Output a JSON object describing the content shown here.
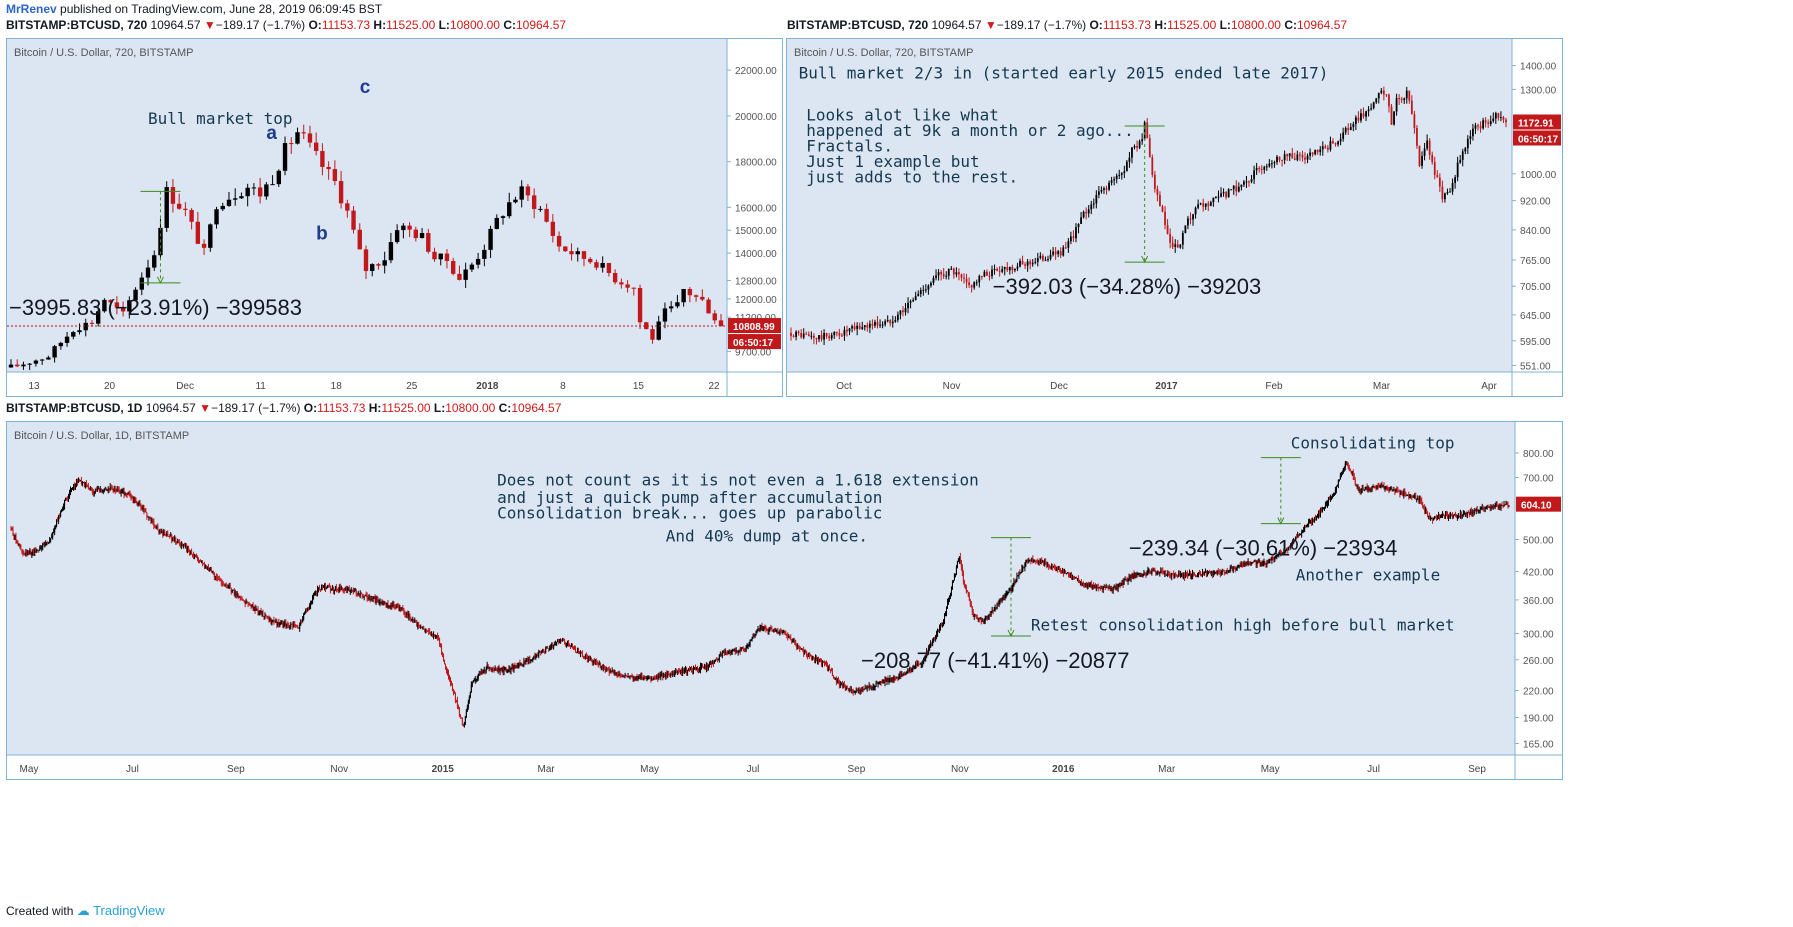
{
  "publish": {
    "author": "MrRenev",
    "text": "published on TradingView.com, June 28, 2019 06:09:45 BST"
  },
  "footer": {
    "created": "Created with",
    "brand": "TradingView"
  },
  "symbol_line": {
    "symbol": "BITSTAMP:BTCUSD,",
    "price": "10964.57",
    "change": "−189.17 (−1.7%)",
    "o_label": "O:",
    "o": "11153.73",
    "h_label": "H:",
    "h": "11525.00",
    "l_label": "L:",
    "l": "10800.00",
    "c_label": "C:",
    "c": "10964.57"
  },
  "colors": {
    "bg": "#dce6f2",
    "bull": "#000000",
    "bear": "#c0181b",
    "measure": "#3d8b1d",
    "tag": "#c0181b",
    "note": "#153850",
    "letters": "#1e3c8c"
  },
  "chart_data": [
    {
      "type": "candlestick",
      "interval": "720",
      "title": "Bitcoin / U.S. Dollar, 720, BITSTAMP",
      "yticks": [
        "22000.00",
        "20000.00",
        "18000.00",
        "16000.00",
        "15000.00",
        "14000.00",
        "12800.00",
        "12000.00",
        "11200.00",
        "9700.00"
      ],
      "xticks": [
        "13",
        "20",
        "Dec",
        "11",
        "18",
        "25",
        "2018",
        "8",
        "15",
        "22"
      ],
      "last_price": "10808.99",
      "countdown": "06:50:17",
      "path": [
        [
          0,
          9000
        ],
        [
          6,
          9500
        ],
        [
          10,
          10700
        ],
        [
          13,
          11000
        ],
        [
          15,
          12000
        ],
        [
          18,
          11300
        ],
        [
          20,
          12500
        ],
        [
          23,
          14000
        ],
        [
          25,
          16700
        ],
        [
          28,
          15800
        ],
        [
          31,
          14000
        ],
        [
          33,
          16200
        ],
        [
          38,
          16900
        ],
        [
          40,
          16600
        ],
        [
          42,
          17300
        ],
        [
          44,
          18500
        ],
        [
          46,
          19300
        ],
        [
          47,
          19000
        ],
        [
          50,
          17800
        ],
        [
          52,
          17100
        ],
        [
          54,
          15800
        ],
        [
          56,
          14000
        ],
        [
          57,
          13300
        ],
        [
          60,
          13800
        ],
        [
          62,
          15200
        ],
        [
          64,
          15000
        ],
        [
          66,
          14700
        ],
        [
          68,
          13800
        ],
        [
          70,
          13700
        ],
        [
          72,
          12900
        ],
        [
          74,
          13500
        ],
        [
          76,
          14300
        ],
        [
          78,
          15400
        ],
        [
          80,
          16200
        ],
        [
          82,
          16700
        ],
        [
          85,
          15900
        ],
        [
          88,
          14300
        ],
        [
          91,
          13900
        ],
        [
          94,
          13600
        ],
        [
          97,
          12900
        ],
        [
          100,
          12500
        ],
        [
          101,
          11000
        ],
        [
          103,
          10300
        ],
        [
          105,
          11400
        ],
        [
          107,
          11700
        ],
        [
          108,
          12400
        ],
        [
          111,
          11900
        ],
        [
          114,
          10808.99
        ]
      ],
      "annotations": [
        {
          "kind": "text",
          "text": "Bull market top",
          "x": 22,
          "y": 19650
        },
        {
          "kind": "letter",
          "text": "a",
          "x": 41,
          "y": 19000
        },
        {
          "kind": "letter",
          "text": "b",
          "x": 49,
          "y": 14600
        },
        {
          "kind": "letter",
          "text": "c",
          "x": 56,
          "y": 21000
        },
        {
          "kind": "measure",
          "text": "−3995.83 (−23.91%) −399583",
          "x": 24,
          "y1": 16700,
          "y2": 12700
        }
      ]
    },
    {
      "type": "candlestick",
      "interval": "720",
      "title": "Bitcoin / U.S. Dollar, 720, BITSTAMP",
      "yticks": [
        "1400.00",
        "1300.00",
        "1172.91",
        "1000.00",
        "920.00",
        "840.00",
        "765.00",
        "705.00",
        "645.00",
        "595.00",
        "551.00"
      ],
      "xticks": [
        "Oct",
        "Nov",
        "Dec",
        "2017",
        "Feb",
        "Mar",
        "Apr"
      ],
      "last_price": "1172.91",
      "countdown": "06:50:17",
      "path": [
        [
          0,
          610
        ],
        [
          10,
          600
        ],
        [
          20,
          610
        ],
        [
          30,
          625
        ],
        [
          38,
          630
        ],
        [
          45,
          660
        ],
        [
          52,
          700
        ],
        [
          58,
          730
        ],
        [
          63,
          740
        ],
        [
          70,
          705
        ],
        [
          76,
          730
        ],
        [
          82,
          745
        ],
        [
          88,
          750
        ],
        [
          94,
          760
        ],
        [
          100,
          772
        ],
        [
          108,
          790
        ],
        [
          115,
          880
        ],
        [
          122,
          950
        ],
        [
          130,
          1000
        ],
        [
          134,
          1075
        ],
        [
          138,
          1120
        ],
        [
          139,
          1160
        ],
        [
          141,
          1050
        ],
        [
          143,
          950
        ],
        [
          146,
          880
        ],
        [
          149,
          800
        ],
        [
          152,
          790
        ],
        [
          156,
          860
        ],
        [
          160,
          900
        ],
        [
          164,
          910
        ],
        [
          170,
          935
        ],
        [
          178,
          970
        ],
        [
          186,
          1030
        ],
        [
          194,
          1060
        ],
        [
          202,
          1050
        ],
        [
          210,
          1080
        ],
        [
          216,
          1120
        ],
        [
          222,
          1180
        ],
        [
          228,
          1230
        ],
        [
          232,
          1290
        ],
        [
          234,
          1270
        ],
        [
          236,
          1170
        ],
        [
          238,
          1260
        ],
        [
          242,
          1280
        ],
        [
          245,
          1160
        ],
        [
          247,
          1030
        ],
        [
          250,
          1110
        ],
        [
          253,
          1000
        ],
        [
          256,
          930
        ],
        [
          259,
          950
        ],
        [
          263,
          1050
        ],
        [
          268,
          1150
        ],
        [
          273,
          1175
        ],
        [
          278,
          1205
        ],
        [
          281,
          1172.91
        ]
      ],
      "annotations": [
        {
          "kind": "text",
          "text": "Bull market 2/3 in (started early 2015 ended late 2017)",
          "x": 3,
          "y": 1345
        },
        {
          "kind": "text",
          "text": "Looks alot like what",
          "x": 6,
          "y": 1180
        },
        {
          "kind": "text",
          "text": "happened at 9k a month or 2 ago...",
          "x": 6,
          "y": 1125
        },
        {
          "kind": "text",
          "text": "Fractals.",
          "x": 6,
          "y": 1072
        },
        {
          "kind": "text",
          "text": "Just 1 example but",
          "x": 6,
          "y": 1022
        },
        {
          "kind": "text",
          "text": "just adds to the rest.",
          "x": 6,
          "y": 974
        },
        {
          "kind": "measure",
          "text": "−392.03 (−34.28%) −39203",
          "x": 139,
          "y1": 1160,
          "y2": 760
        }
      ]
    },
    {
      "type": "candlestick",
      "interval": "1D",
      "title": "Bitcoin / U.S. Dollar, 1D, BITSTAMP",
      "yticks": [
        "800.00",
        "700.00",
        "604.10",
        "500.00",
        "420.00",
        "360.00",
        "300.00",
        "260.00",
        "220.00",
        "190.00",
        "165.00"
      ],
      "xticks": [
        "May",
        "Jul",
        "Sep",
        "Nov",
        "2015",
        "Mar",
        "May",
        "Jul",
        "Sep",
        "Nov",
        "2016",
        "Mar",
        "May",
        "Jul",
        "Sep"
      ],
      "last_price": "604.10",
      "countdown": "",
      "path": [
        [
          0,
          530
        ],
        [
          12,
          460
        ],
        [
          25,
          470
        ],
        [
          40,
          500
        ],
        [
          55,
          620
        ],
        [
          68,
          690
        ],
        [
          82,
          650
        ],
        [
          100,
          660
        ],
        [
          118,
          640
        ],
        [
          130,
          600
        ],
        [
          150,
          520
        ],
        [
          165,
          500
        ],
        [
          180,
          470
        ],
        [
          210,
          400
        ],
        [
          240,
          350
        ],
        [
          262,
          320
        ],
        [
          290,
          310
        ],
        [
          310,
          385
        ],
        [
          340,
          380
        ],
        [
          368,
          360
        ],
        [
          395,
          340
        ],
        [
          412,
          310
        ],
        [
          430,
          295
        ],
        [
          440,
          240
        ],
        [
          456,
          180
        ],
        [
          465,
          230
        ],
        [
          480,
          250
        ],
        [
          500,
          245
        ],
        [
          520,
          258
        ],
        [
          540,
          275
        ],
        [
          555,
          290
        ],
        [
          568,
          275
        ],
        [
          590,
          255
        ],
        [
          610,
          240
        ],
        [
          640,
          235
        ],
        [
          670,
          242
        ],
        [
          700,
          250
        ],
        [
          720,
          270
        ],
        [
          740,
          275
        ],
        [
          755,
          310
        ],
        [
          780,
          300
        ],
        [
          800,
          270
        ],
        [
          820,
          255
        ],
        [
          833,
          230
        ],
        [
          848,
          218
        ],
        [
          870,
          226
        ],
        [
          900,
          240
        ],
        [
          920,
          260
        ],
        [
          940,
          320
        ],
        [
          950,
          400
        ],
        [
          956,
          460
        ],
        [
          960,
          400
        ],
        [
          970,
          330
        ],
        [
          980,
          320
        ],
        [
          990,
          340
        ],
        [
          1010,
          390
        ],
        [
          1025,
          450
        ],
        [
          1040,
          440
        ],
        [
          1060,
          420
        ],
        [
          1085,
          390
        ],
        [
          1110,
          380
        ],
        [
          1130,
          410
        ],
        [
          1150,
          420
        ],
        [
          1180,
          410
        ],
        [
          1200,
          415
        ],
        [
          1225,
          420
        ],
        [
          1245,
          440
        ],
        [
          1265,
          440
        ],
        [
          1285,
          470
        ],
        [
          1300,
          520
        ],
        [
          1320,
          580
        ],
        [
          1335,
          650
        ],
        [
          1345,
          760
        ],
        [
          1352,
          720
        ],
        [
          1358,
          650
        ],
        [
          1380,
          670
        ],
        [
          1405,
          640
        ],
        [
          1420,
          620
        ],
        [
          1430,
          555
        ],
        [
          1440,
          570
        ],
        [
          1460,
          570
        ],
        [
          1480,
          590
        ],
        [
          1500,
          600
        ],
        [
          1510,
          604.1
        ]
      ],
      "annotations": [
        {
          "kind": "text",
          "text": "Consolidating top",
          "x": 1290,
          "y": 820
        },
        {
          "kind": "text",
          "text": "Does not count as it is not even a 1.618 extension",
          "x": 490,
          "y": 670
        },
        {
          "kind": "text",
          "text": "and just a quick pump after accumulation",
          "x": 490,
          "y": 610
        },
        {
          "kind": "text",
          "text": "Consolidation break... goes up parabolic",
          "x": 490,
          "y": 560
        },
        {
          "kind": "text",
          "text": "And 40% dump at once.",
          "x": 660,
          "y": 495
        },
        {
          "kind": "text",
          "text": "Another example",
          "x": 1295,
          "y": 400
        },
        {
          "kind": "text",
          "text": "Retest consolidation high before bull market",
          "x": 1028,
          "y": 305
        },
        {
          "kind": "measure",
          "text": "−239.34 (−30.61%) −23934",
          "x": 1280,
          "y1": 780,
          "y2": 545
        },
        {
          "kind": "measure",
          "text": "−208.77 (−41.41%) −20877",
          "x": 1008,
          "y1": 505,
          "y2": 296
        }
      ]
    }
  ]
}
